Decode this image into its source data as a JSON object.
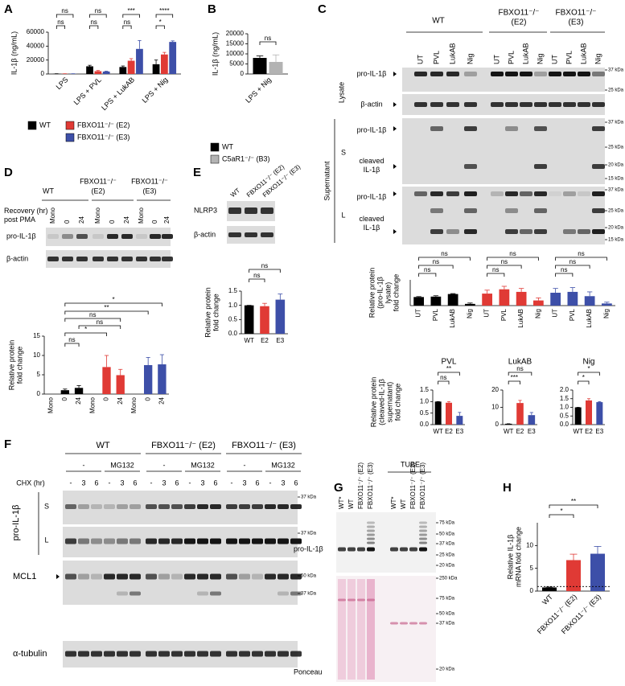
{
  "panel_labels": [
    "A",
    "B",
    "C",
    "D",
    "E",
    "F",
    "G",
    "H"
  ],
  "chart_data": [
    {
      "type": "bar",
      "y_label": "IL-1β (ng/mL)",
      "categories": [
        "LPS",
        "LPS + PVL",
        "LPS + LukAB",
        "LPS + Nig"
      ],
      "series": [
        {
          "name": "WT",
          "color": "#000000",
          "values": [
            300,
            11000,
            10000,
            14000
          ],
          "errors": [
            100,
            1500,
            1500,
            6000
          ]
        },
        {
          "name": "FBXO11⁻/⁻ (E2)",
          "color": "#e03a35",
          "values": [
            300,
            4000,
            19000,
            28000
          ],
          "errors": [
            100,
            1000,
            3000,
            3000
          ]
        },
        {
          "name": "FBXO11⁻/⁻ (E3)",
          "color": "#3d4fa8",
          "values": [
            300,
            3500,
            36000,
            46000
          ],
          "errors": [
            100,
            500,
            12000,
            1500
          ]
        }
      ],
      "ylim": [
        0,
        60000
      ],
      "yticks": [
        0,
        20000,
        40000,
        60000
      ],
      "annotations": [
        "ns",
        "ns",
        "ns",
        "ns",
        "***",
        "ns",
        "****",
        "*"
      ]
    },
    {
      "type": "bar",
      "y_label": "IL-1β (ng/mL)",
      "categories": [
        "LPS + Nig"
      ],
      "series": [
        {
          "name": "WT",
          "color": "#000000",
          "values": [
            8000
          ],
          "errors": [
            1000
          ]
        },
        {
          "name": "C5aR1⁻/⁻ (B3)",
          "color": "#b3b3b3",
          "values": [
            6000
          ],
          "errors": [
            3500
          ]
        }
      ],
      "ylim": [
        0,
        20000
      ],
      "yticks": [
        0,
        5000,
        10000,
        15000,
        20000
      ],
      "annotations": [
        "ns"
      ]
    },
    {
      "type": "bar",
      "y_label": [
        "Relative protein",
        "(pro-IL-1β",
        "lysate)",
        "fold change"
      ],
      "categories": [
        "UT",
        "PVL",
        "LukAB",
        "Nig",
        "UT",
        "PVL",
        "LukAB",
        "Nig",
        "UT",
        "PVL",
        "LukAB",
        "Nig"
      ],
      "colors": [
        "#000000",
        "#000000",
        "#000000",
        "#000000",
        "#e03a35",
        "#e03a35",
        "#e03a35",
        "#e03a35",
        "#3d4fa8",
        "#3d4fa8",
        "#3d4fa8",
        "#3d4fa8"
      ],
      "values": [
        1.0,
        1.05,
        1.35,
        0.2,
        1.4,
        1.9,
        1.6,
        0.6,
        1.5,
        1.6,
        1.1,
        0.25
      ],
      "errors": [
        0.05,
        0.1,
        0.05,
        0.1,
        0.4,
        0.35,
        0.4,
        0.3,
        0.5,
        0.5,
        0.5,
        0.15
      ],
      "ylim": [
        0,
        3
      ],
      "annotations": [
        "ns",
        "ns",
        "ns",
        "ns",
        "ns",
        "ns",
        "ns",
        "ns",
        "ns"
      ]
    },
    {
      "type": "bar",
      "title": "PVL",
      "y_label": [
        "Relative protein",
        "(cleaved-IL-1β",
        "supernatant)",
        "fold change"
      ],
      "categories": [
        "WT",
        "E2",
        "E3"
      ],
      "colors": [
        "#000000",
        "#e03a35",
        "#3d4fa8"
      ],
      "values": [
        1.0,
        0.95,
        0.38
      ],
      "errors": [
        0,
        0.05,
        0.15
      ],
      "ylim": [
        0,
        1.5
      ],
      "yticks": [
        {
          "value": 0,
          "label": "0.0"
        },
        0.5,
        {
          "value": 1,
          "label": "1.0"
        },
        1.5
      ],
      "annotations": [
        "**",
        "ns"
      ]
    },
    {
      "type": "bar",
      "title": "LukAB",
      "categories": [
        "WT",
        "E2",
        "E3"
      ],
      "colors": [
        "#000000",
        "#e03a35",
        "#3d4fa8"
      ],
      "values": [
        0.5,
        12.5,
        5.5
      ],
      "errors": [
        0,
        1.5,
        1.5
      ],
      "ylim": [
        0,
        20
      ],
      "yticks": [
        0,
        10,
        20
      ],
      "annotations": [
        "ns",
        "***"
      ]
    },
    {
      "type": "bar",
      "title": "Nig",
      "categories": [
        "WT",
        "E2",
        "E3"
      ],
      "colors": [
        "#000000",
        "#e03a35",
        "#3d4fa8"
      ],
      "values": [
        1.0,
        1.4,
        1.3
      ],
      "errors": [
        0,
        0.1,
        0.03
      ],
      "ylim": [
        0,
        2
      ],
      "yticks": [
        {
          "value": 0,
          "label": "0.0"
        },
        0.5,
        {
          "value": 1,
          "label": "1.0"
        },
        1.5,
        {
          "value": 2,
          "label": "2.0"
        }
      ],
      "annotations": [
        "*",
        "*"
      ]
    },
    {
      "type": "bar",
      "y_label": [
        "Relative protein",
        "fold change"
      ],
      "categories": [
        "Mono",
        "0",
        "24",
        "Mono",
        "0",
        "24",
        "Mono",
        "0",
        "24"
      ],
      "colors": [
        "#000000",
        "#000000",
        "#000000",
        "#e03a35",
        "#e03a35",
        "#e03a35",
        "#3d4fa8",
        "#3d4fa8",
        "#3d4fa8"
      ],
      "values": [
        null,
        1.0,
        1.6,
        null,
        7.0,
        4.9,
        null,
        7.5,
        7.7
      ],
      "errors": [
        null,
        0.3,
        0.6,
        null,
        3,
        1.5,
        null,
        2,
        2.5
      ],
      "ylim": [
        0,
        15
      ],
      "yticks": [
        0,
        5,
        10,
        15
      ],
      "annotations": [
        "*",
        "**",
        "ns",
        "ns",
        "*",
        "ns"
      ]
    },
    {
      "type": "bar",
      "y_label": [
        "Relative protein",
        "fold change"
      ],
      "categories": [
        "WT",
        "E2",
        "E3"
      ],
      "colors": [
        "#000000",
        "#e03a35",
        "#3d4fa8"
      ],
      "values": [
        1.0,
        0.97,
        1.2
      ],
      "errors": [
        0,
        0.1,
        0.2
      ],
      "ylim": [
        0,
        1.5
      ],
      "yticks": [
        {
          "value": 0,
          "label": "0.0"
        },
        0.5,
        {
          "value": 1,
          "label": "1.0"
        },
        1.5
      ],
      "annotations": [
        "ns",
        "ns"
      ]
    },
    {
      "type": "bar",
      "y_label": [
        "Relative IL-1β",
        "mRNA fold change"
      ],
      "categories": [
        "WT",
        "FBXO11⁻/⁻ (E2)",
        "FBXO11⁻/⁻ (E3)"
      ],
      "colors": [
        "#000000",
        "#e03a35",
        "#3d4fa8"
      ],
      "values": [
        0.8,
        6.8,
        8.2
      ],
      "errors": [
        0.1,
        1.3,
        1.6
      ],
      "hline": 1,
      "ylim": [
        0,
        15
      ],
      "yticks": [
        0,
        5,
        10
      ],
      "annotations": [
        "**",
        "*"
      ]
    }
  ],
  "blots": {
    "C": {
      "groups": [
        [
          "WT"
        ],
        [
          "FBXO11⁻/⁻",
          "(E2)"
        ],
        [
          "FBXO11⁻/⁻",
          "(E3)"
        ]
      ],
      "lanes": [
        "UT",
        "PVL",
        "LukAB",
        "Nig",
        "UT",
        "PVL",
        "LukAB",
        "Nig",
        "UT",
        "PVL",
        "LukAB",
        "Nig"
      ],
      "fractions": [
        "Lysate",
        "Supernatant",
        "S",
        "L"
      ],
      "bands": [
        [
          "pro-IL-1β"
        ],
        [
          "β-actin"
        ],
        [
          "pro-IL-1β"
        ],
        [
          "cleaved",
          "IL-1β"
        ],
        [
          "pro-IL-1β"
        ],
        [
          "cleaved",
          "IL-1β"
        ]
      ],
      "markers": [
        "37 kDa",
        "25 kDa",
        "37 kDa",
        "25 kDa",
        "20 kDa",
        "15 kDa",
        "37 kDa",
        "25 kDa",
        "20 kDa",
        "15 kDa"
      ]
    },
    "D": {
      "groups": [
        [
          "WT"
        ],
        [
          "FBXO11⁻/⁻",
          "(E2)"
        ],
        [
          "FBXO11⁻/⁻",
          "(E3)"
        ]
      ],
      "condition": [
        "Recovery (hr)",
        "post PMA"
      ],
      "lanes": [
        "Mono",
        "0",
        "24",
        "Mono",
        "0",
        "24",
        "Mono",
        "0",
        "24"
      ],
      "bands": [
        "pro-IL-1β",
        "β-actin"
      ]
    },
    "E": {
      "lanes": [
        "WT",
        "FBXO11⁻/⁻ (E2)",
        "FBXO11⁻/⁻ (E3)"
      ],
      "bands": [
        "NLRP3",
        "β-actin"
      ]
    },
    "F": {
      "groups": [
        "WT",
        "FBXO11⁻/⁻ (E2)",
        "FBXO11⁻/⁻ (E3)"
      ],
      "treatments": [
        "-",
        "MG132",
        "-",
        "MG132",
        "-",
        "MG132"
      ],
      "condition": "CHX (hr)",
      "lanes": [
        "-",
        "3",
        "6",
        "-",
        "3",
        "6",
        "-",
        "3",
        "6",
        "-",
        "3",
        "6",
        "-",
        "3",
        "6",
        "-",
        "3",
        "6"
      ],
      "target": "pro-IL-1β",
      "fractions": [
        "S",
        "L"
      ],
      "bands": [
        "MCL1",
        "α-tubulin"
      ],
      "markers": [
        "37 kDa",
        "37 kDa",
        "50 kDa",
        "37 kDa"
      ]
    },
    "G": {
      "group": "TUBE",
      "lanes": [
        "WT*",
        "WT",
        "FBXO11⁻/⁻ (E2)",
        "FBXO11⁻/⁻ (E3)",
        "WT*",
        "WT",
        "FBXO11⁻/⁻ (E2)",
        "FBXO11⁻/⁻ (E3)"
      ],
      "bands": [
        "pro-IL-1β",
        "Ponceau"
      ],
      "markers": [
        "75 kDa",
        "50 kDa",
        "37 kDa",
        "25 kDa",
        "20 kDa",
        "250 kDa",
        "75 kDa",
        "50 kDa",
        "37 kDa",
        "20 kDa"
      ]
    }
  }
}
